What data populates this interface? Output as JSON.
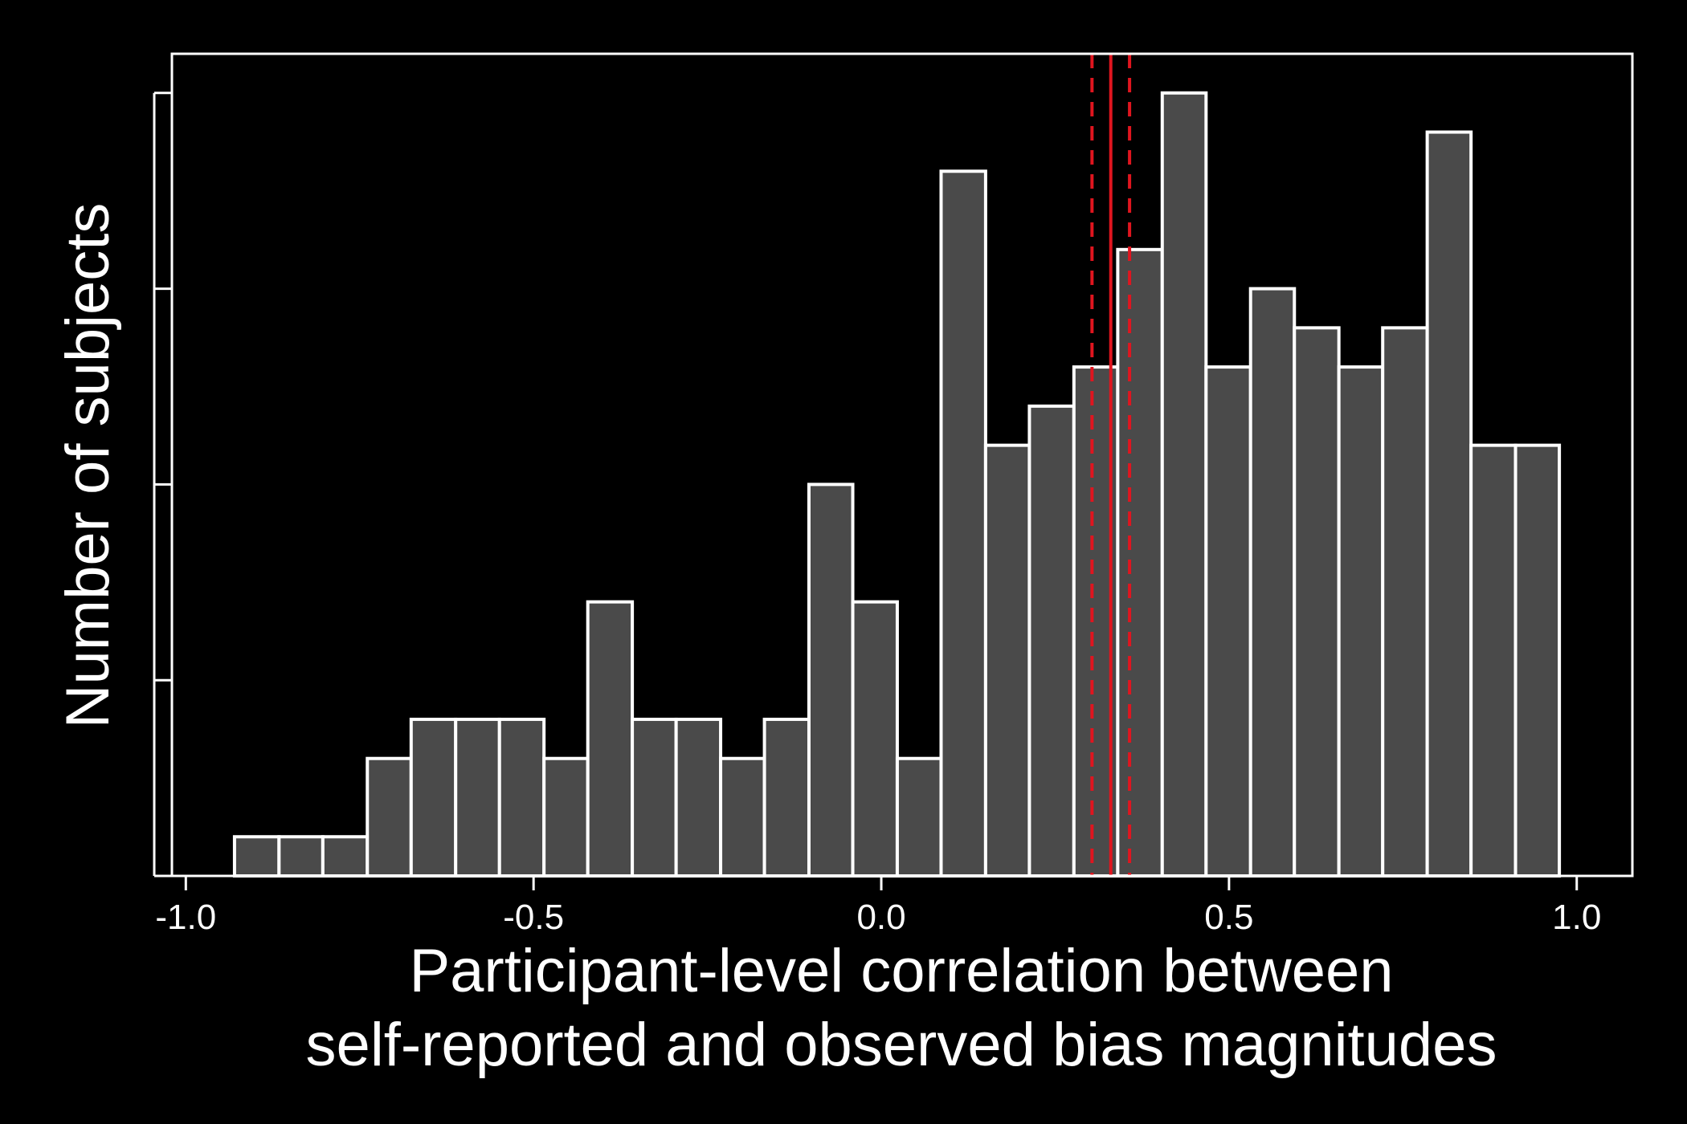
{
  "chart_data": {
    "type": "bar",
    "subtype": "histogram",
    "xlabel_lines": [
      "Participant-level correlation between",
      "self-reported and observed bias magnitudes"
    ],
    "ylabel": "Number of subjects",
    "xlim": [
      -1.02,
      1.08
    ],
    "ylim": [
      0,
      21
    ],
    "x_ticks": [
      -1.0,
      -0.5,
      0.0,
      0.5,
      1.0
    ],
    "x_tick_labels": [
      "-1.0",
      "-0.5",
      "0.0",
      "0.5",
      "1.0"
    ],
    "y_ticks": [
      0,
      5,
      10,
      15,
      20
    ],
    "y_tick_labels_shown": false,
    "bin_width": 0.0635,
    "bins": [
      {
        "x0": -0.93,
        "x1": -0.866,
        "count": 1
      },
      {
        "x0": -0.866,
        "x1": -0.803,
        "count": 1
      },
      {
        "x0": -0.803,
        "x1": -0.739,
        "count": 1
      },
      {
        "x0": -0.739,
        "x1": -0.676,
        "count": 3
      },
      {
        "x0": -0.676,
        "x1": -0.612,
        "count": 4
      },
      {
        "x0": -0.612,
        "x1": -0.549,
        "count": 4
      },
      {
        "x0": -0.549,
        "x1": -0.485,
        "count": 4
      },
      {
        "x0": -0.485,
        "x1": -0.422,
        "count": 3
      },
      {
        "x0": -0.422,
        "x1": -0.358,
        "count": 7
      },
      {
        "x0": -0.358,
        "x1": -0.295,
        "count": 4
      },
      {
        "x0": -0.295,
        "x1": -0.231,
        "count": 4
      },
      {
        "x0": -0.231,
        "x1": -0.168,
        "count": 3
      },
      {
        "x0": -0.168,
        "x1": -0.104,
        "count": 4
      },
      {
        "x0": -0.104,
        "x1": -0.041,
        "count": 10
      },
      {
        "x0": -0.041,
        "x1": 0.023,
        "count": 7
      },
      {
        "x0": 0.023,
        "x1": 0.086,
        "count": 3
      },
      {
        "x0": 0.086,
        "x1": 0.15,
        "count": 18
      },
      {
        "x0": 0.15,
        "x1": 0.213,
        "count": 11
      },
      {
        "x0": 0.213,
        "x1": 0.277,
        "count": 12
      },
      {
        "x0": 0.277,
        "x1": 0.34,
        "count": 13
      },
      {
        "x0": 0.34,
        "x1": 0.404,
        "count": 16
      },
      {
        "x0": 0.404,
        "x1": 0.467,
        "count": 20
      },
      {
        "x0": 0.467,
        "x1": 0.531,
        "count": 13
      },
      {
        "x0": 0.531,
        "x1": 0.594,
        "count": 15
      },
      {
        "x0": 0.594,
        "x1": 0.658,
        "count": 14
      },
      {
        "x0": 0.658,
        "x1": 0.721,
        "count": 13
      },
      {
        "x0": 0.721,
        "x1": 0.785,
        "count": 14
      },
      {
        "x0": 0.785,
        "x1": 0.848,
        "count": 19
      },
      {
        "x0": 0.848,
        "x1": 0.912,
        "count": 11
      },
      {
        "x0": 0.912,
        "x1": 0.975,
        "count": 11
      }
    ],
    "reference_lines": [
      {
        "kind": "mean",
        "x": 0.33,
        "style": "solid",
        "color": "#e0151f"
      },
      {
        "kind": "ci-lower",
        "x": 0.303,
        "style": "dashed",
        "color": "#e0151f"
      },
      {
        "kind": "ci-upper",
        "x": 0.357,
        "style": "dashed",
        "color": "#e0151f"
      }
    ],
    "bar_fill": "#4a4a4a",
    "bar_stroke": "#ffffff",
    "background": "#000000",
    "grid": false,
    "legend": "none"
  }
}
